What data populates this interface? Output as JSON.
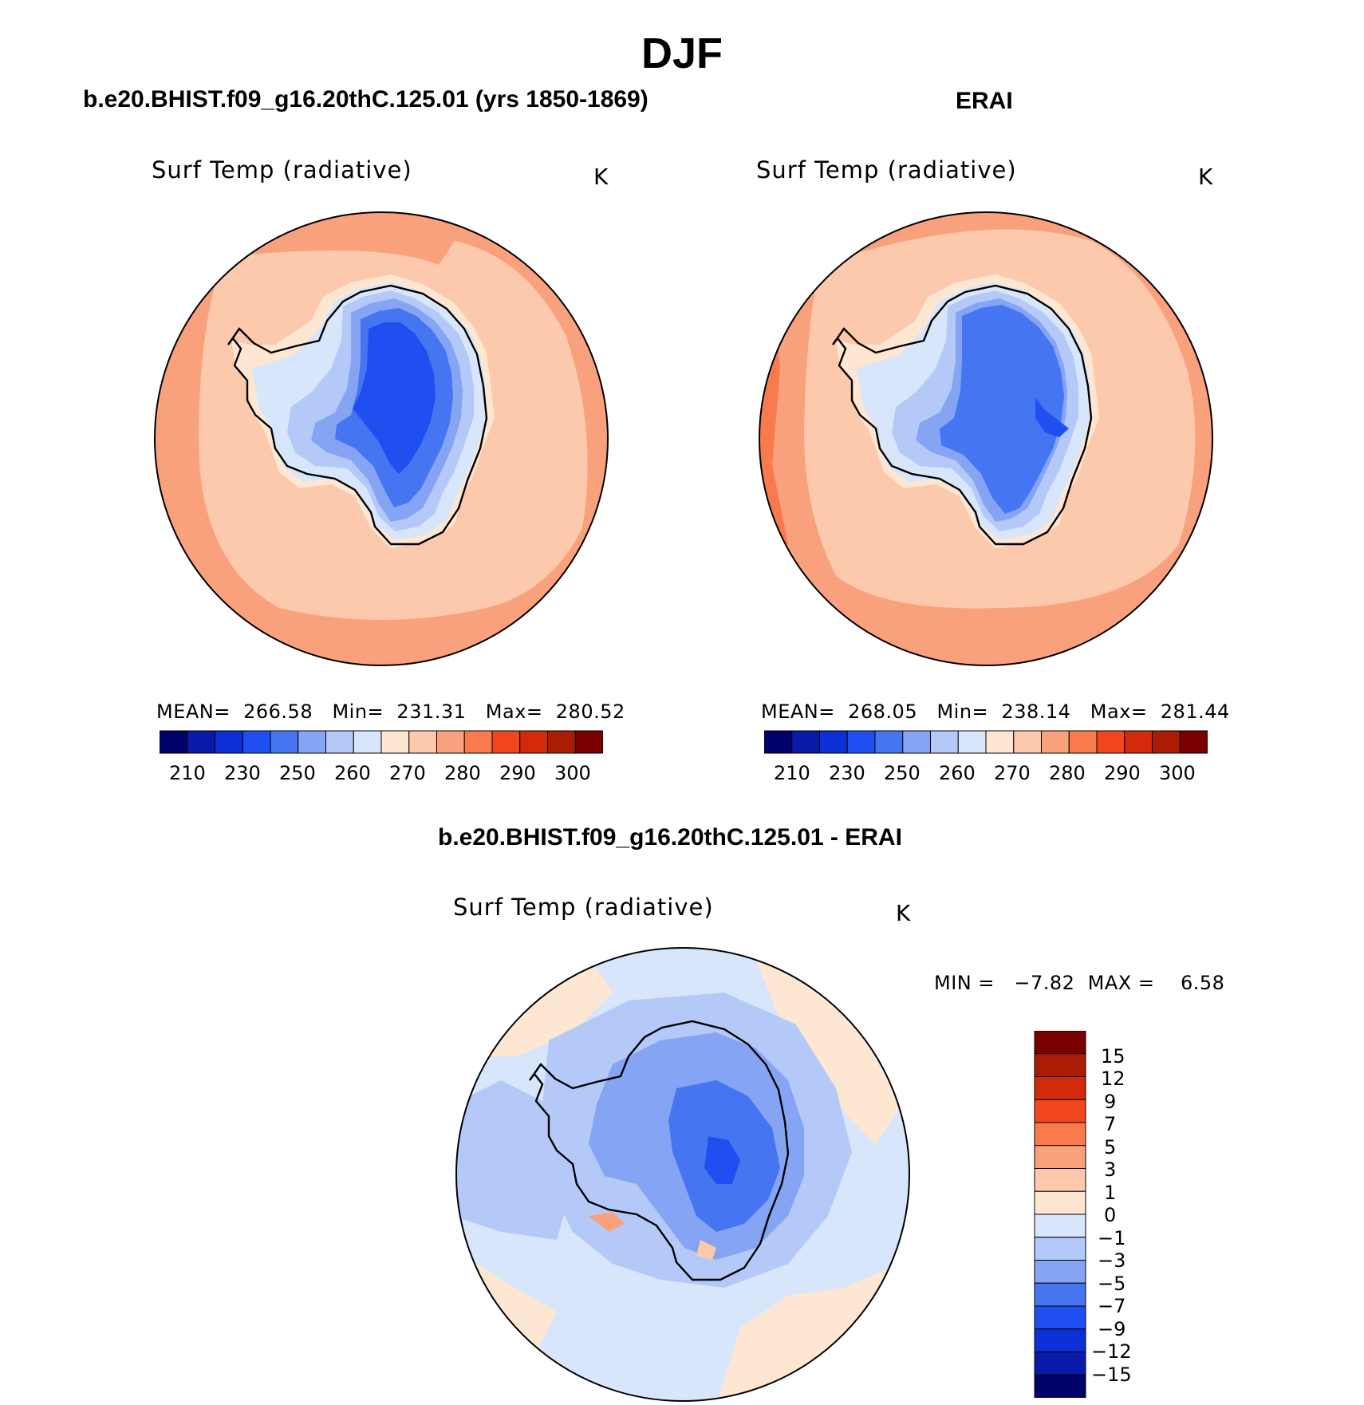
{
  "title": "DJF",
  "panels": {
    "model": {
      "title": "b.e20.BHIST.f09_g16.20thC.125.01 (yrs 1850-1869)",
      "variable": "Surf Temp (radiative)",
      "units": "K",
      "stats": "MEAN=  266.58   Min=  231.31   Max=  280.52",
      "stats_values": {
        "mean": 266.58,
        "min": 231.31,
        "max": 280.52
      }
    },
    "obs": {
      "title": "ERAI",
      "variable": "Surf Temp (radiative)",
      "units": "K",
      "stats": "MEAN=  268.05   Min=  238.14   Max=  281.44",
      "stats_values": {
        "mean": 268.05,
        "min": 238.14,
        "max": 281.44
      }
    },
    "diff": {
      "title": "b.e20.BHIST.f09_g16.20thC.125.01 - ERAI",
      "variable": "Surf Temp (radiative)",
      "units": "K",
      "stats": "MIN =   −7.82  MAX =    6.58",
      "stats_values": {
        "min": -7.82,
        "max": 6.58
      }
    }
  },
  "colorbars": {
    "abs": {
      "colors": [
        "#02026b",
        "#0a1aa8",
        "#0d30d6",
        "#1f4ff0",
        "#4675f2",
        "#86a4f4",
        "#b4c9f7",
        "#d7e6fb",
        "#fde7d3",
        "#fcc9ad",
        "#f9a17d",
        "#f87a4d",
        "#f2461e",
        "#d42a0c",
        "#ab1c05",
        "#7a0000"
      ],
      "tick_labels": [
        "210",
        "230",
        "250",
        "260",
        "270",
        "280",
        "290",
        "300"
      ]
    },
    "diff": {
      "colors": [
        "#02026b",
        "#0a1aa8",
        "#0d30d6",
        "#1f4ff0",
        "#4675f2",
        "#86a4f4",
        "#b4c9f7",
        "#d7e6fb",
        "#fde7d3",
        "#fcc9ad",
        "#f9a17d",
        "#f87a4d",
        "#f2461e",
        "#d42a0c",
        "#ab1c05",
        "#7a0000"
      ],
      "tick_labels": [
        "15",
        "12",
        "9",
        "7",
        "5",
        "3",
        "1",
        "0",
        "−1",
        "−3",
        "−5",
        "−7",
        "−9",
        "−12",
        "−15"
      ]
    }
  },
  "map_fill_colors": {
    "ocean_outer": "#f9a17d",
    "ocean_mid": "#fcc9ad",
    "coast_band": "#fde7d3",
    "ice_edge": "#d7e6fb",
    "ice_1": "#b4c9f7",
    "ice_2": "#86a4f4",
    "ice_3": "#4675f2",
    "ice_4": "#1f4ff0",
    "diff_ocean": "#d7e6fb",
    "diff_warm": "#fde7d3",
    "diff_cool": "#b4c9f7"
  }
}
